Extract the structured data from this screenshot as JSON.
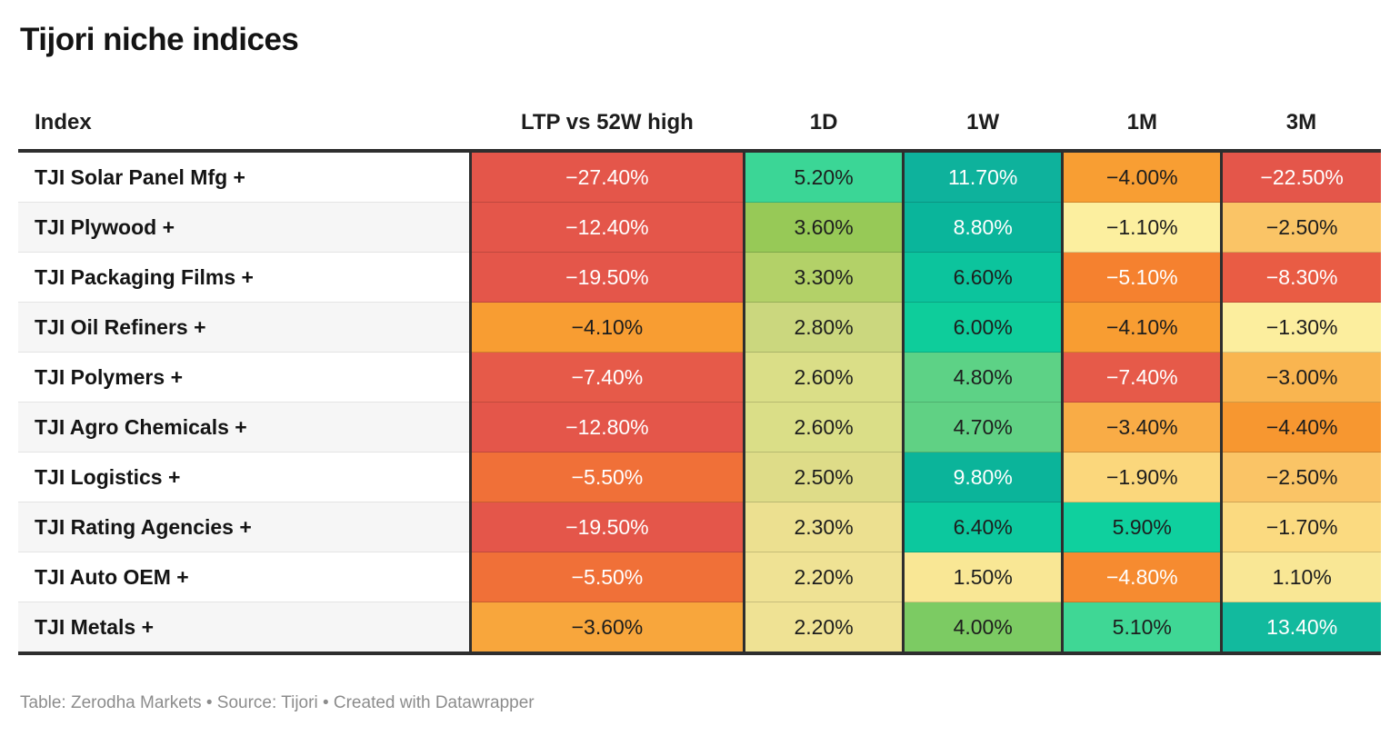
{
  "title": "Tijori niche indices",
  "columns": [
    "Index",
    "LTP vs 52W high",
    "1D",
    "1W",
    "1M",
    "3M"
  ],
  "rows": [
    {
      "name": "TJI Solar Panel Mfg +",
      "cells": [
        {
          "text": "−27.40%",
          "bg": "#e4564a",
          "fg": "#ffffff"
        },
        {
          "text": "5.20%",
          "bg": "#3bd696",
          "fg": "#1d1d1d"
        },
        {
          "text": "11.70%",
          "bg": "#0eb29c",
          "fg": "#ffffff"
        },
        {
          "text": "−4.00%",
          "bg": "#f89e33",
          "fg": "#1d1d1d"
        },
        {
          "text": "−22.50%",
          "bg": "#e4564a",
          "fg": "#ffffff"
        }
      ]
    },
    {
      "name": "TJI Plywood +",
      "cells": [
        {
          "text": "−12.40%",
          "bg": "#e4564a",
          "fg": "#ffffff"
        },
        {
          "text": "3.60%",
          "bg": "#97c957",
          "fg": "#1d1d1d"
        },
        {
          "text": "8.80%",
          "bg": "#0ab59b",
          "fg": "#ffffff"
        },
        {
          "text": "−1.10%",
          "bg": "#fcef9f",
          "fg": "#1d1d1d"
        },
        {
          "text": "−2.50%",
          "bg": "#fac466",
          "fg": "#1d1d1d"
        }
      ]
    },
    {
      "name": "TJI Packaging Films +",
      "cells": [
        {
          "text": "−19.50%",
          "bg": "#e4564a",
          "fg": "#ffffff"
        },
        {
          "text": "3.30%",
          "bg": "#b3d168",
          "fg": "#1d1d1d"
        },
        {
          "text": "6.60%",
          "bg": "#0cc49d",
          "fg": "#1d1d1d"
        },
        {
          "text": "−5.10%",
          "bg": "#f5812f",
          "fg": "#ffffff"
        },
        {
          "text": "−8.30%",
          "bg": "#e95c44",
          "fg": "#ffffff"
        }
      ]
    },
    {
      "name": "TJI Oil Refiners +",
      "cells": [
        {
          "text": "−4.10%",
          "bg": "#f89d32",
          "fg": "#1d1d1d"
        },
        {
          "text": "2.80%",
          "bg": "#cbd77e",
          "fg": "#1d1d1d"
        },
        {
          "text": "6.00%",
          "bg": "#0ecd9b",
          "fg": "#1d1d1d"
        },
        {
          "text": "−4.10%",
          "bg": "#f89d32",
          "fg": "#1d1d1d"
        },
        {
          "text": "−1.30%",
          "bg": "#fcee9e",
          "fg": "#1d1d1d"
        }
      ]
    },
    {
      "name": "TJI Polymers +",
      "cells": [
        {
          "text": "−7.40%",
          "bg": "#e65a49",
          "fg": "#ffffff"
        },
        {
          "text": "2.60%",
          "bg": "#dade87",
          "fg": "#1d1d1d"
        },
        {
          "text": "4.80%",
          "bg": "#5dd286",
          "fg": "#1d1d1d"
        },
        {
          "text": "−7.40%",
          "bg": "#e65a49",
          "fg": "#ffffff"
        },
        {
          "text": "−3.00%",
          "bg": "#f9b550",
          "fg": "#1d1d1d"
        }
      ]
    },
    {
      "name": "TJI Agro Chemicals +",
      "cells": [
        {
          "text": "−12.80%",
          "bg": "#e4564a",
          "fg": "#ffffff"
        },
        {
          "text": "2.60%",
          "bg": "#dade87",
          "fg": "#1d1d1d"
        },
        {
          "text": "4.70%",
          "bg": "#60d184",
          "fg": "#1d1d1d"
        },
        {
          "text": "−3.40%",
          "bg": "#f9ac46",
          "fg": "#1d1d1d"
        },
        {
          "text": "−4.40%",
          "bg": "#f79730",
          "fg": "#1d1d1d"
        }
      ]
    },
    {
      "name": "TJI Logistics +",
      "cells": [
        {
          "text": "−5.50%",
          "bg": "#f07038",
          "fg": "#ffffff"
        },
        {
          "text": "2.50%",
          "bg": "#dedc88",
          "fg": "#1d1d1d"
        },
        {
          "text": "9.80%",
          "bg": "#0bb49a",
          "fg": "#ffffff"
        },
        {
          "text": "−1.90%",
          "bg": "#fbd77c",
          "fg": "#1d1d1d"
        },
        {
          "text": "−2.50%",
          "bg": "#fac466",
          "fg": "#1d1d1d"
        }
      ]
    },
    {
      "name": "TJI Rating Agencies +",
      "cells": [
        {
          "text": "−19.50%",
          "bg": "#e4564a",
          "fg": "#ffffff"
        },
        {
          "text": "2.30%",
          "bg": "#ece090",
          "fg": "#1d1d1d"
        },
        {
          "text": "6.40%",
          "bg": "#0cc89e",
          "fg": "#1d1d1d"
        },
        {
          "text": "5.90%",
          "bg": "#0fd09e",
          "fg": "#1d1d1d"
        },
        {
          "text": "−1.70%",
          "bg": "#fbda80",
          "fg": "#1d1d1d"
        }
      ]
    },
    {
      "name": "TJI Auto OEM +",
      "cells": [
        {
          "text": "−5.50%",
          "bg": "#f07038",
          "fg": "#ffffff"
        },
        {
          "text": "2.20%",
          "bg": "#efe294",
          "fg": "#1d1d1d"
        },
        {
          "text": "1.50%",
          "bg": "#f9e795",
          "fg": "#1d1d1d"
        },
        {
          "text": "−4.80%",
          "bg": "#f68b30",
          "fg": "#ffffff"
        },
        {
          "text": "1.10%",
          "bg": "#f9e795",
          "fg": "#1d1d1d"
        }
      ]
    },
    {
      "name": "TJI Metals +",
      "cells": [
        {
          "text": "−3.60%",
          "bg": "#f8a63c",
          "fg": "#1d1d1d"
        },
        {
          "text": "2.20%",
          "bg": "#efe294",
          "fg": "#1d1d1d"
        },
        {
          "text": "4.00%",
          "bg": "#7ccb63",
          "fg": "#1d1d1d"
        },
        {
          "text": "5.10%",
          "bg": "#3fd795",
          "fg": "#1d1d1d"
        },
        {
          "text": "13.40%",
          "bg": "#12ba9e",
          "fg": "#ffffff"
        }
      ]
    }
  ],
  "footer": "Table: Zerodha Markets • Source: Tijori • Created with Datawrapper",
  "colors": {
    "border_dark": "#2e2e2e",
    "row_alt_bg": "#f6f6f6",
    "footer_text": "#8c8c8c",
    "negative_strong": "#e4564a",
    "negative_mild": "#f89e33",
    "neutral": "#f9e795",
    "positive_mild": "#97c957",
    "positive_strong": "#0ab59b"
  },
  "chart_data": {
    "type": "table",
    "title": "Tijori niche indices",
    "columns": [
      "Index",
      "LTP vs 52W high",
      "1D",
      "1W",
      "1M",
      "3M"
    ],
    "unit": "%",
    "color_scale": "diverging heatmap: red (negative) → pale yellow (near 0) → teal/green (positive)",
    "rows": [
      [
        "TJI Solar Panel Mfg +",
        -27.4,
        5.2,
        11.7,
        -4.0,
        -22.5
      ],
      [
        "TJI Plywood +",
        -12.4,
        3.6,
        8.8,
        -1.1,
        -2.5
      ],
      [
        "TJI Packaging Films +",
        -19.5,
        3.3,
        6.6,
        -5.1,
        -8.3
      ],
      [
        "TJI Oil Refiners +",
        -4.1,
        2.8,
        6.0,
        -4.1,
        -1.3
      ],
      [
        "TJI Polymers +",
        -7.4,
        2.6,
        4.8,
        -7.4,
        -3.0
      ],
      [
        "TJI Agro Chemicals +",
        -12.8,
        2.6,
        4.7,
        -3.4,
        -4.4
      ],
      [
        "TJI Logistics +",
        -5.5,
        2.5,
        9.8,
        -1.9,
        -2.5
      ],
      [
        "TJI Rating Agencies +",
        -19.5,
        2.3,
        6.4,
        5.9,
        -1.7
      ],
      [
        "TJI Auto OEM +",
        -5.5,
        2.2,
        1.5,
        -4.8,
        1.1
      ],
      [
        "TJI Metals +",
        -3.6,
        2.2,
        4.0,
        5.1,
        13.4
      ]
    ]
  }
}
